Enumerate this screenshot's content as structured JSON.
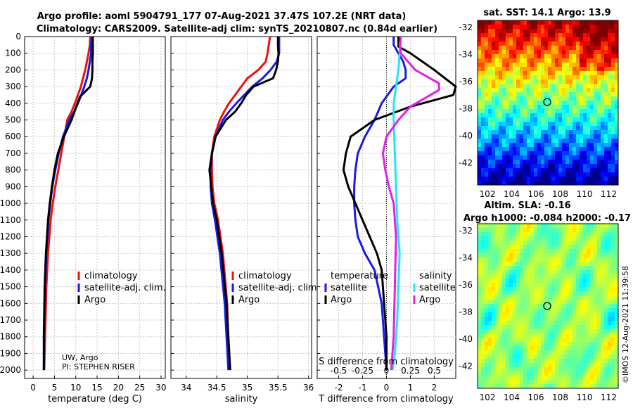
{
  "header": {
    "line1": "Argo profile: aoml 5904791_177 07-Aug-2021 37.47S 107.2E (NRT data)",
    "line2": "Climatology: CARS2009. Satellite-adj clim: synTS_20210807.nc (0.84d earlier)"
  },
  "credits": {
    "institution": "UW, Argo",
    "pi": "PI: STEPHEN RISER"
  },
  "copyright": "©IMOS 12-Aug-2021 11:39:58",
  "colors": {
    "red": "#ee1111",
    "blue": "#1a1ae6",
    "black": "#000000",
    "cyan": "#22e6ee",
    "magenta": "#e61ee6"
  },
  "depth_ticks": [
    "0",
    "100",
    "200",
    "300",
    "400",
    "500",
    "600",
    "700",
    "800",
    "900",
    "1000",
    "1100",
    "1200",
    "1300",
    "1400",
    "1500",
    "1600",
    "1700",
    "1800",
    "1900",
    "2000"
  ],
  "legends": {
    "temperature": [
      "climatology",
      "satellite-adj. clim.",
      "Argo"
    ],
    "salinity": [
      "climatology",
      "satellite-adj. clim.",
      "Argo"
    ],
    "difference": {
      "temp_title": "temperature",
      "sal_title": "salinity",
      "temp_items": [
        "satellite",
        "Argo"
      ],
      "sal_items": [
        "satellite",
        "Argo"
      ]
    }
  },
  "maps": {
    "sst": {
      "title": "sat. SST: 14.1 Argo: 13.9",
      "yticks": [
        "-32",
        "-34",
        "-36",
        "-38",
        "-40",
        "-42"
      ],
      "xticks": [
        "102",
        "104",
        "106",
        "108",
        "110",
        "112"
      ]
    },
    "sla": {
      "title1": "Altim. SLA: -0.16",
      "title2": "Argo h1000: -0.084 h2000: -0.17",
      "yticks": [
        "-32",
        "-34",
        "-36",
        "-38",
        "-40",
        "-42"
      ],
      "xticks": [
        "102",
        "104",
        "106",
        "108",
        "110",
        "112"
      ]
    }
  },
  "chart_data": [
    {
      "type": "line",
      "name": "temperature",
      "xlabel": "temperature (deg C)",
      "ylabel": "",
      "xlim": [
        -2,
        31
      ],
      "ylim": [
        0,
        2050
      ],
      "y_inverted": true,
      "xticks": [
        "0",
        "5",
        "10",
        "15",
        "20",
        "25",
        "30"
      ],
      "series": [
        {
          "name": "climatology",
          "color": "red",
          "x": [
            13.4,
            13.3,
            13.0,
            12.6,
            12.2,
            11.7,
            11.2,
            10.5,
            9.8,
            9.0,
            8.0,
            7.3,
            6.6,
            5.9,
            5.2,
            4.6,
            4.1,
            3.5,
            3.1,
            2.8,
            2.6
          ],
          "y": [
            0,
            50,
            100,
            150,
            200,
            250,
            300,
            350,
            400,
            450,
            500,
            600,
            700,
            800,
            900,
            1000,
            1100,
            1300,
            1500,
            1800,
            2000
          ]
        },
        {
          "name": "satellite-adj. clim.",
          "color": "blue",
          "x": [
            13.7,
            13.6,
            13.6,
            13.3,
            13.0,
            12.6,
            12.0,
            11.3,
            10.5,
            9.6,
            8.5,
            7.0,
            6.0,
            5.2,
            4.5,
            4.0,
            3.6,
            3.1,
            2.8,
            2.6,
            2.5
          ],
          "y": [
            0,
            50,
            100,
            150,
            200,
            250,
            300,
            350,
            400,
            450,
            500,
            600,
            700,
            800,
            900,
            1000,
            1100,
            1300,
            1500,
            1800,
            2000
          ]
        },
        {
          "name": "Argo",
          "color": "black",
          "x": [
            14.0,
            14.0,
            14.0,
            13.9,
            13.9,
            13.8,
            13.4,
            12.2,
            11.0,
            10.4,
            9.0,
            7.2,
            5.8,
            5.0,
            4.4,
            3.9,
            3.5,
            3.0,
            2.7,
            2.5,
            2.5
          ],
          "y": [
            0,
            50,
            100,
            150,
            200,
            250,
            300,
            330,
            360,
            400,
            500,
            600,
            700,
            800,
            900,
            1000,
            1100,
            1300,
            1500,
            1800,
            2000
          ]
        }
      ]
    },
    {
      "type": "line",
      "name": "salinity",
      "xlabel": "salinity",
      "ylabel": "",
      "xlim": [
        33.75,
        36.05
      ],
      "ylim": [
        0,
        2050
      ],
      "y_inverted": true,
      "xticks": [
        "34",
        "34.5",
        "35",
        "35.5",
        "36"
      ],
      "series": [
        {
          "name": "climatology",
          "color": "red",
          "x": [
            35.37,
            35.35,
            35.33,
            35.3,
            35.18,
            35.0,
            34.9,
            34.8,
            34.7,
            34.62,
            34.55,
            34.46,
            34.42,
            34.42,
            34.43,
            34.46,
            34.52,
            34.6,
            34.67,
            34.7
          ],
          "y": [
            0,
            50,
            100,
            150,
            200,
            250,
            300,
            350,
            400,
            450,
            500,
            600,
            700,
            800,
            900,
            1000,
            1100,
            1300,
            1600,
            2000
          ]
        },
        {
          "name": "satellite-adj. clim.",
          "color": "blue",
          "x": [
            35.52,
            35.52,
            35.52,
            35.48,
            35.38,
            35.25,
            35.08,
            34.95,
            34.82,
            34.7,
            34.6,
            34.48,
            34.42,
            34.4,
            34.4,
            34.42,
            34.47,
            34.55,
            34.63,
            34.69
          ],
          "y": [
            0,
            50,
            100,
            150,
            200,
            250,
            300,
            350,
            400,
            450,
            500,
            600,
            700,
            800,
            900,
            1000,
            1100,
            1300,
            1600,
            2000
          ]
        },
        {
          "name": "Argo",
          "color": "black",
          "x": [
            35.5,
            35.5,
            35.51,
            35.5,
            35.47,
            35.42,
            35.1,
            34.98,
            34.9,
            34.8,
            34.65,
            34.48,
            34.42,
            34.38,
            34.41,
            34.44,
            34.5,
            34.58,
            34.66,
            34.72
          ],
          "y": [
            0,
            50,
            100,
            150,
            200,
            250,
            300,
            350,
            400,
            450,
            500,
            600,
            700,
            800,
            900,
            1000,
            1100,
            1300,
            1600,
            2000
          ]
        }
      ]
    },
    {
      "type": "line",
      "name": "difference",
      "xlabel": "T difference from climatology",
      "xlabel_top": "S difference from climatology",
      "ylabel": "",
      "xlim": [
        -2.9,
        2.9
      ],
      "ylim": [
        0,
        2050
      ],
      "y_inverted": true,
      "xticks": [
        "-2",
        "-1",
        "0",
        "1",
        "2"
      ],
      "xticks_top": [
        "-0.5",
        "-0.25",
        "0",
        "0.25",
        "0.5"
      ],
      "series": [
        {
          "name": "temperature satellite",
          "color": "blue",
          "x": [
            0.3,
            0.3,
            0.5,
            0.7,
            0.8,
            0.8,
            0.3,
            -0.2,
            -0.5,
            -0.9,
            -1.2,
            -1.3,
            -1.35,
            -1.35,
            -1.3,
            -1.2,
            -0.9,
            -0.5,
            -0.2,
            -0.1,
            0.0
          ],
          "y": [
            0,
            50,
            100,
            150,
            200,
            250,
            300,
            400,
            500,
            600,
            700,
            800,
            900,
            1000,
            1100,
            1200,
            1300,
            1400,
            1600,
            1800,
            2000
          ]
        },
        {
          "name": "temperature Argo",
          "color": "black",
          "x": [
            0.5,
            0.5,
            1.0,
            2.0,
            2.9,
            2.8,
            1.0,
            -0.5,
            -1.5,
            -1.7,
            -1.8,
            -1.6,
            -1.3,
            -1.0,
            -0.7,
            -0.4,
            -0.2,
            -0.1,
            0.0,
            0.0
          ],
          "y": [
            0,
            60,
            100,
            200,
            300,
            350,
            420,
            500,
            600,
            700,
            800,
            900,
            1000,
            1100,
            1200,
            1300,
            1400,
            1600,
            1800,
            2000
          ]
        },
        {
          "name": "salinity satellite",
          "color": "cyan",
          "x": [
            0.6,
            0.6,
            0.55,
            0.5,
            0.4,
            0.3,
            0.3,
            0.35,
            0.4,
            0.45,
            0.5,
            0.55,
            0.5,
            0.45,
            0.35,
            0.25
          ],
          "y": [
            0,
            50,
            100,
            200,
            300,
            400,
            500,
            700,
            900,
            1100,
            1200,
            1300,
            1500,
            1700,
            1900,
            2000
          ]
        },
        {
          "name": "salinity Argo",
          "color": "magenta",
          "x": [
            0.6,
            0.55,
            0.6,
            1.2,
            2.2,
            2.2,
            1.0,
            0.5,
            0.0,
            -0.15,
            -0.05,
            0.1,
            0.3,
            0.4,
            0.35,
            0.3,
            0.2
          ],
          "y": [
            0,
            50,
            100,
            200,
            280,
            320,
            420,
            500,
            600,
            700,
            800,
            900,
            1000,
            1200,
            1500,
            1800,
            2000
          ]
        }
      ]
    }
  ]
}
